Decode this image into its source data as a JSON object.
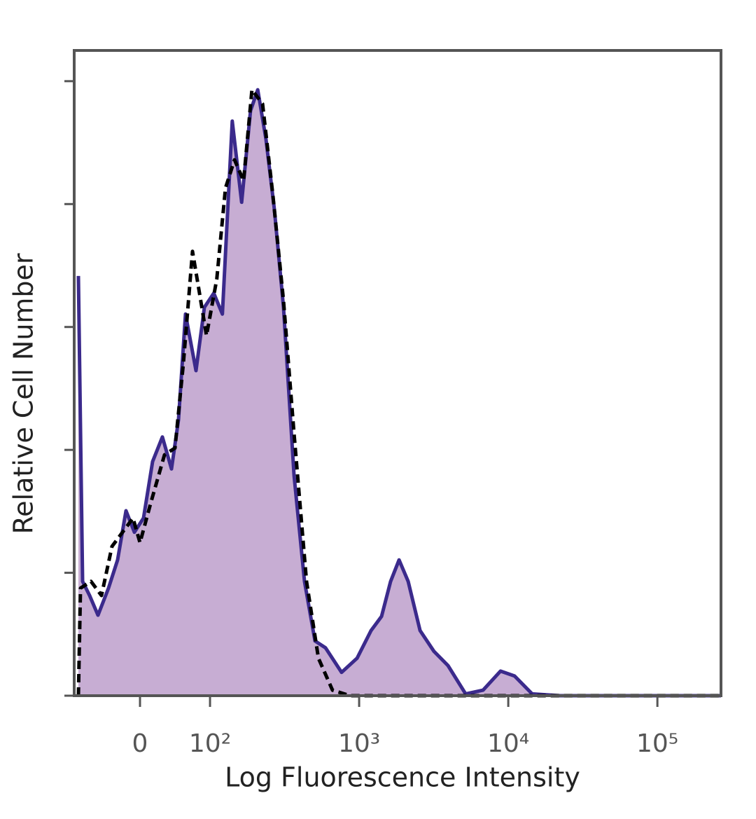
{
  "chart_data": {
    "type": "histogram-overlay",
    "xlabel": "Log Fluorescence Intensity",
    "ylabel": "Relative Cell Number",
    "xscale": "biexponential",
    "xlim": [
      -94,
      267000
    ],
    "xticks": [
      0,
      {
        "value": 100,
        "label": "10²"
      },
      {
        "value": 1000,
        "label": "10³"
      },
      {
        "value": 10000,
        "label": "10⁴"
      },
      {
        "value": 100000,
        "label": "10⁵"
      }
    ],
    "ylim": [
      0,
      105
    ],
    "yticks": [
      0,
      20,
      40,
      60,
      80,
      100
    ],
    "show_ytick_labels": false,
    "series": [
      {
        "style": "filled",
        "color": "#3b2a8c",
        "fill": "#c7add3",
        "x": [
          -88,
          -82,
          -72,
          -60,
          -45,
          -32,
          -20,
          -8,
          5,
          18,
          32,
          45,
          55,
          65,
          80,
          92,
          106,
          121,
          141,
          163,
          187,
          209,
          237,
          270,
          311,
          366,
          430,
          506,
          595,
          763,
          968,
          1202,
          1413,
          1626,
          1853,
          2132,
          2561,
          3178,
          3945,
          5176,
          6776,
          8872,
          11020,
          14450,
          22230,
          267000
        ],
        "values": [
          68.3,
          18.6,
          16.3,
          13.1,
          17.5,
          22.1,
          30.1,
          26.6,
          28.9,
          38.1,
          42.1,
          36.9,
          44.9,
          62.1,
          52.9,
          63.2,
          65.5,
          62.1,
          93.5,
          80.3,
          95.2,
          98.6,
          90.6,
          79.2,
          63.2,
          35.8,
          18.6,
          8.9,
          7.8,
          3.8,
          6.1,
          10.6,
          12.9,
          18.6,
          22.1,
          18.6,
          10.6,
          7.2,
          4.9,
          0.3,
          0.9,
          4.0,
          3.2,
          0.3,
          0,
          0
        ]
      },
      {
        "style": "dashed",
        "color": "#000000",
        "x": [
          -88,
          -85,
          -70,
          -55,
          -40,
          -25,
          -10,
          0,
          15,
          35,
          50,
          62,
          75,
          85,
          95,
          111,
          127,
          146,
          168,
          191,
          225,
          264,
          311,
          366,
          444,
          533,
          663,
          869,
          267000
        ],
        "values": [
          0,
          17.5,
          18.6,
          16.3,
          24.3,
          26.6,
          28.9,
          24.9,
          31.2,
          39.2,
          40.3,
          54.1,
          72.3,
          65.5,
          58.6,
          67.8,
          82.6,
          87.2,
          83.8,
          98.6,
          96.3,
          81.5,
          64.3,
          42.6,
          18.6,
          6.1,
          0.9,
          0,
          0
        ]
      }
    ]
  }
}
